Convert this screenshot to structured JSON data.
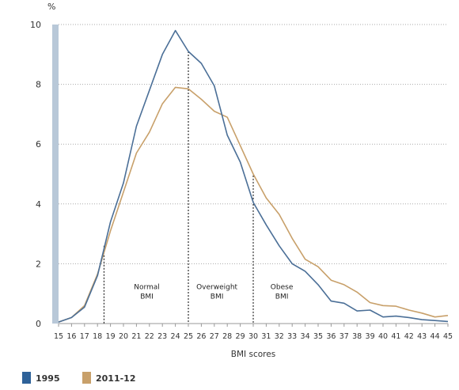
{
  "chart_data": {
    "type": "line",
    "title": "",
    "xlabel": "BMI scores",
    "ylabel": "%",
    "xlim": [
      15,
      45
    ],
    "ylim": [
      0,
      10
    ],
    "yticks": [
      0,
      2,
      4,
      6,
      8,
      10
    ],
    "x": [
      15,
      16,
      17,
      18,
      19,
      20,
      21,
      22,
      23,
      24,
      25,
      26,
      27,
      28,
      29,
      30,
      31,
      32,
      33,
      34,
      35,
      36,
      37,
      38,
      39,
      40,
      41,
      42,
      43,
      44,
      45
    ],
    "series": [
      {
        "name": "1995",
        "color": "#4b6f97",
        "values": [
          0.05,
          0.2,
          0.55,
          1.6,
          3.4,
          4.7,
          6.6,
          7.8,
          9.0,
          9.8,
          9.1,
          8.7,
          7.95,
          6.3,
          5.4,
          4.05,
          3.3,
          2.6,
          2.0,
          1.75,
          1.3,
          0.75,
          0.68,
          0.42,
          0.45,
          0.22,
          0.25,
          0.2,
          0.13,
          0.1,
          0.07
        ]
      },
      {
        "name": "2011-12",
        "color": "#c8a06a",
        "values": [
          0.05,
          0.2,
          0.6,
          1.65,
          3.1,
          4.4,
          5.7,
          6.4,
          7.35,
          7.9,
          7.85,
          7.5,
          7.1,
          6.9,
          5.95,
          5.0,
          4.2,
          3.65,
          2.85,
          2.15,
          1.9,
          1.45,
          1.3,
          1.05,
          0.7,
          0.6,
          0.58,
          0.45,
          0.35,
          0.22,
          0.27
        ]
      }
    ],
    "reference_lines": [
      {
        "x": 18.5,
        "top": 2.6
      },
      {
        "x": 25,
        "top": 9.1
      },
      {
        "x": 30,
        "top": 4.95
      }
    ],
    "annotations": [
      {
        "line1": "Normal",
        "line2": "BMI",
        "x": 21.8,
        "y": 1.15
      },
      {
        "line1": "Overweight",
        "line2": "BMI",
        "x": 27.2,
        "y": 1.15
      },
      {
        "line1": "Obese",
        "line2": "BMI",
        "x": 32.2,
        "y": 1.15
      }
    ],
    "legend": {
      "position": "bottom-left",
      "items": [
        {
          "label": "1995",
          "color": "#2e6299"
        },
        {
          "label": "2011-12",
          "color": "#c8a06a"
        }
      ]
    },
    "colors": {
      "axis_bar": "#b8c8d8",
      "gridline": "#aaaaaa",
      "reference_line": "#000000"
    },
    "grid": true
  }
}
